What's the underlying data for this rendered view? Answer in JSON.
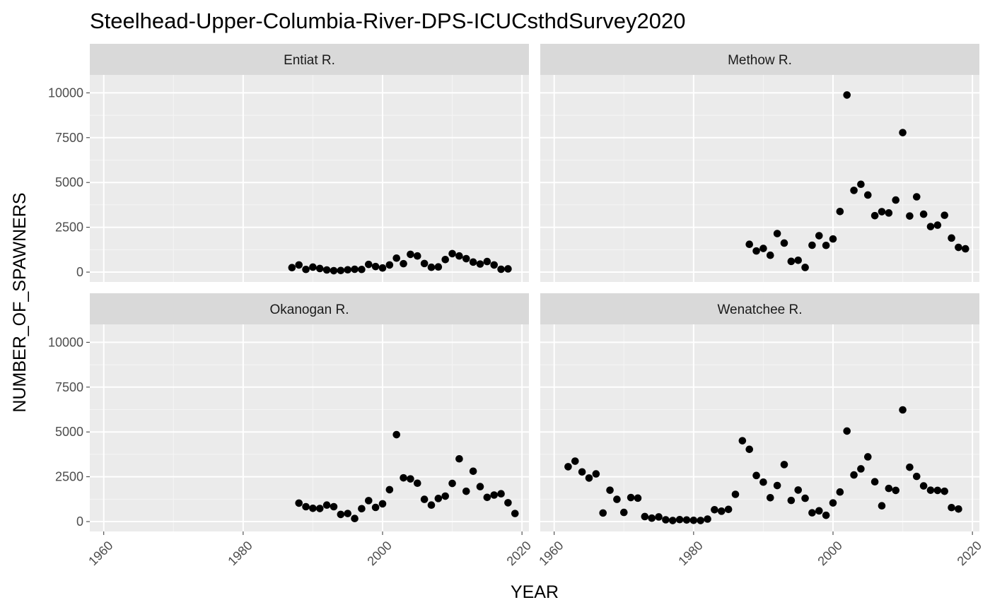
{
  "chart_data": {
    "type": "scatter",
    "title": "Steelhead-Upper-Columbia-River-DPS-ICUCsthdSurvey2020",
    "xlabel": "YEAR",
    "ylabel": "NUMBER_OF_SPAWNERS",
    "xlim": [
      1958,
      2021
    ],
    "ylim": [
      -550,
      11000
    ],
    "x_ticks": [
      1960,
      1980,
      2000,
      2020
    ],
    "x_tick_labels": [
      "1960",
      "1980",
      "2000",
      "2020"
    ],
    "y_ticks": [
      0,
      2500,
      5000,
      7500,
      10000
    ],
    "y_tick_labels": [
      "0",
      "2500",
      "5000",
      "7500",
      "10000"
    ],
    "grid": true,
    "layout": "facet_wrap 2x2",
    "panels": [
      {
        "name": "Entiat R.",
        "points": [
          [
            1987,
            250
          ],
          [
            1988,
            400
          ],
          [
            1989,
            150
          ],
          [
            1990,
            280
          ],
          [
            1991,
            200
          ],
          [
            1992,
            120
          ],
          [
            1993,
            80
          ],
          [
            1994,
            90
          ],
          [
            1995,
            130
          ],
          [
            1996,
            160
          ],
          [
            1997,
            150
          ],
          [
            1998,
            430
          ],
          [
            1999,
            310
          ],
          [
            2000,
            230
          ],
          [
            2001,
            400
          ],
          [
            2002,
            780
          ],
          [
            2003,
            470
          ],
          [
            2004,
            990
          ],
          [
            2005,
            900
          ],
          [
            2006,
            480
          ],
          [
            2007,
            270
          ],
          [
            2008,
            290
          ],
          [
            2009,
            700
          ],
          [
            2010,
            1030
          ],
          [
            2011,
            900
          ],
          [
            2012,
            750
          ],
          [
            2013,
            560
          ],
          [
            2014,
            450
          ],
          [
            2015,
            590
          ],
          [
            2016,
            400
          ],
          [
            2017,
            160
          ],
          [
            2018,
            180
          ]
        ]
      },
      {
        "name": "Methow R.",
        "points": [
          [
            1988,
            1550
          ],
          [
            1989,
            1180
          ],
          [
            1990,
            1320
          ],
          [
            1991,
            940
          ],
          [
            1992,
            2150
          ],
          [
            1993,
            1620
          ],
          [
            1994,
            600
          ],
          [
            1995,
            660
          ],
          [
            1996,
            260
          ],
          [
            1997,
            1500
          ],
          [
            1998,
            2030
          ],
          [
            1999,
            1490
          ],
          [
            2000,
            1850
          ],
          [
            2001,
            3380
          ],
          [
            2002,
            9880
          ],
          [
            2003,
            4560
          ],
          [
            2004,
            4900
          ],
          [
            2005,
            4300
          ],
          [
            2006,
            3150
          ],
          [
            2007,
            3370
          ],
          [
            2008,
            3300
          ],
          [
            2009,
            4020
          ],
          [
            2010,
            7780
          ],
          [
            2011,
            3130
          ],
          [
            2012,
            4200
          ],
          [
            2013,
            3230
          ],
          [
            2014,
            2540
          ],
          [
            2015,
            2620
          ],
          [
            2016,
            3170
          ],
          [
            2017,
            1900
          ],
          [
            2018,
            1380
          ],
          [
            2019,
            1300
          ]
        ]
      },
      {
        "name": "Okanogan R.",
        "points": [
          [
            1988,
            1030
          ],
          [
            1989,
            830
          ],
          [
            1990,
            740
          ],
          [
            1991,
            730
          ],
          [
            1992,
            920
          ],
          [
            1993,
            830
          ],
          [
            1994,
            400
          ],
          [
            1995,
            450
          ],
          [
            1996,
            170
          ],
          [
            1997,
            720
          ],
          [
            1998,
            1170
          ],
          [
            1999,
            790
          ],
          [
            2000,
            990
          ],
          [
            2001,
            1780
          ],
          [
            2002,
            4850
          ],
          [
            2003,
            2440
          ],
          [
            2004,
            2380
          ],
          [
            2005,
            2140
          ],
          [
            2006,
            1240
          ],
          [
            2007,
            920
          ],
          [
            2008,
            1290
          ],
          [
            2009,
            1420
          ],
          [
            2010,
            2130
          ],
          [
            2011,
            3500
          ],
          [
            2012,
            1690
          ],
          [
            2013,
            2810
          ],
          [
            2014,
            1950
          ],
          [
            2015,
            1350
          ],
          [
            2016,
            1480
          ],
          [
            2017,
            1550
          ],
          [
            2018,
            1050
          ],
          [
            2019,
            450
          ]
        ]
      },
      {
        "name": "Wenatchee R.",
        "points": [
          [
            1962,
            3060
          ],
          [
            1963,
            3370
          ],
          [
            1964,
            2770
          ],
          [
            1965,
            2430
          ],
          [
            1966,
            2660
          ],
          [
            1967,
            480
          ],
          [
            1968,
            1750
          ],
          [
            1969,
            1240
          ],
          [
            1970,
            510
          ],
          [
            1971,
            1340
          ],
          [
            1972,
            1310
          ],
          [
            1973,
            280
          ],
          [
            1974,
            190
          ],
          [
            1975,
            260
          ],
          [
            1976,
            100
          ],
          [
            1977,
            60
          ],
          [
            1978,
            110
          ],
          [
            1979,
            90
          ],
          [
            1980,
            70
          ],
          [
            1981,
            60
          ],
          [
            1982,
            140
          ],
          [
            1983,
            660
          ],
          [
            1984,
            580
          ],
          [
            1985,
            680
          ],
          [
            1986,
            1520
          ],
          [
            1987,
            4510
          ],
          [
            1988,
            4030
          ],
          [
            1989,
            2570
          ],
          [
            1990,
            2200
          ],
          [
            1991,
            1330
          ],
          [
            1992,
            2010
          ],
          [
            1993,
            3180
          ],
          [
            1994,
            1180
          ],
          [
            1995,
            1760
          ],
          [
            1996,
            1300
          ],
          [
            1997,
            490
          ],
          [
            1998,
            600
          ],
          [
            1999,
            350
          ],
          [
            2000,
            1040
          ],
          [
            2001,
            1650
          ],
          [
            2002,
            5050
          ],
          [
            2003,
            2600
          ],
          [
            2004,
            2940
          ],
          [
            2005,
            3610
          ],
          [
            2006,
            2220
          ],
          [
            2007,
            880
          ],
          [
            2008,
            1850
          ],
          [
            2009,
            1740
          ],
          [
            2010,
            6230
          ],
          [
            2011,
            3030
          ],
          [
            2012,
            2520
          ],
          [
            2013,
            1990
          ],
          [
            2014,
            1750
          ],
          [
            2015,
            1740
          ],
          [
            2016,
            1690
          ],
          [
            2017,
            780
          ],
          [
            2018,
            700
          ]
        ]
      }
    ]
  },
  "colors": {
    "panel_bg": "#ebebeb",
    "strip_bg": "#d9d9d9",
    "grid_major": "#ffffff",
    "grid_minor": "#f5f5f5",
    "point": "#000000",
    "tick": "#333333"
  }
}
